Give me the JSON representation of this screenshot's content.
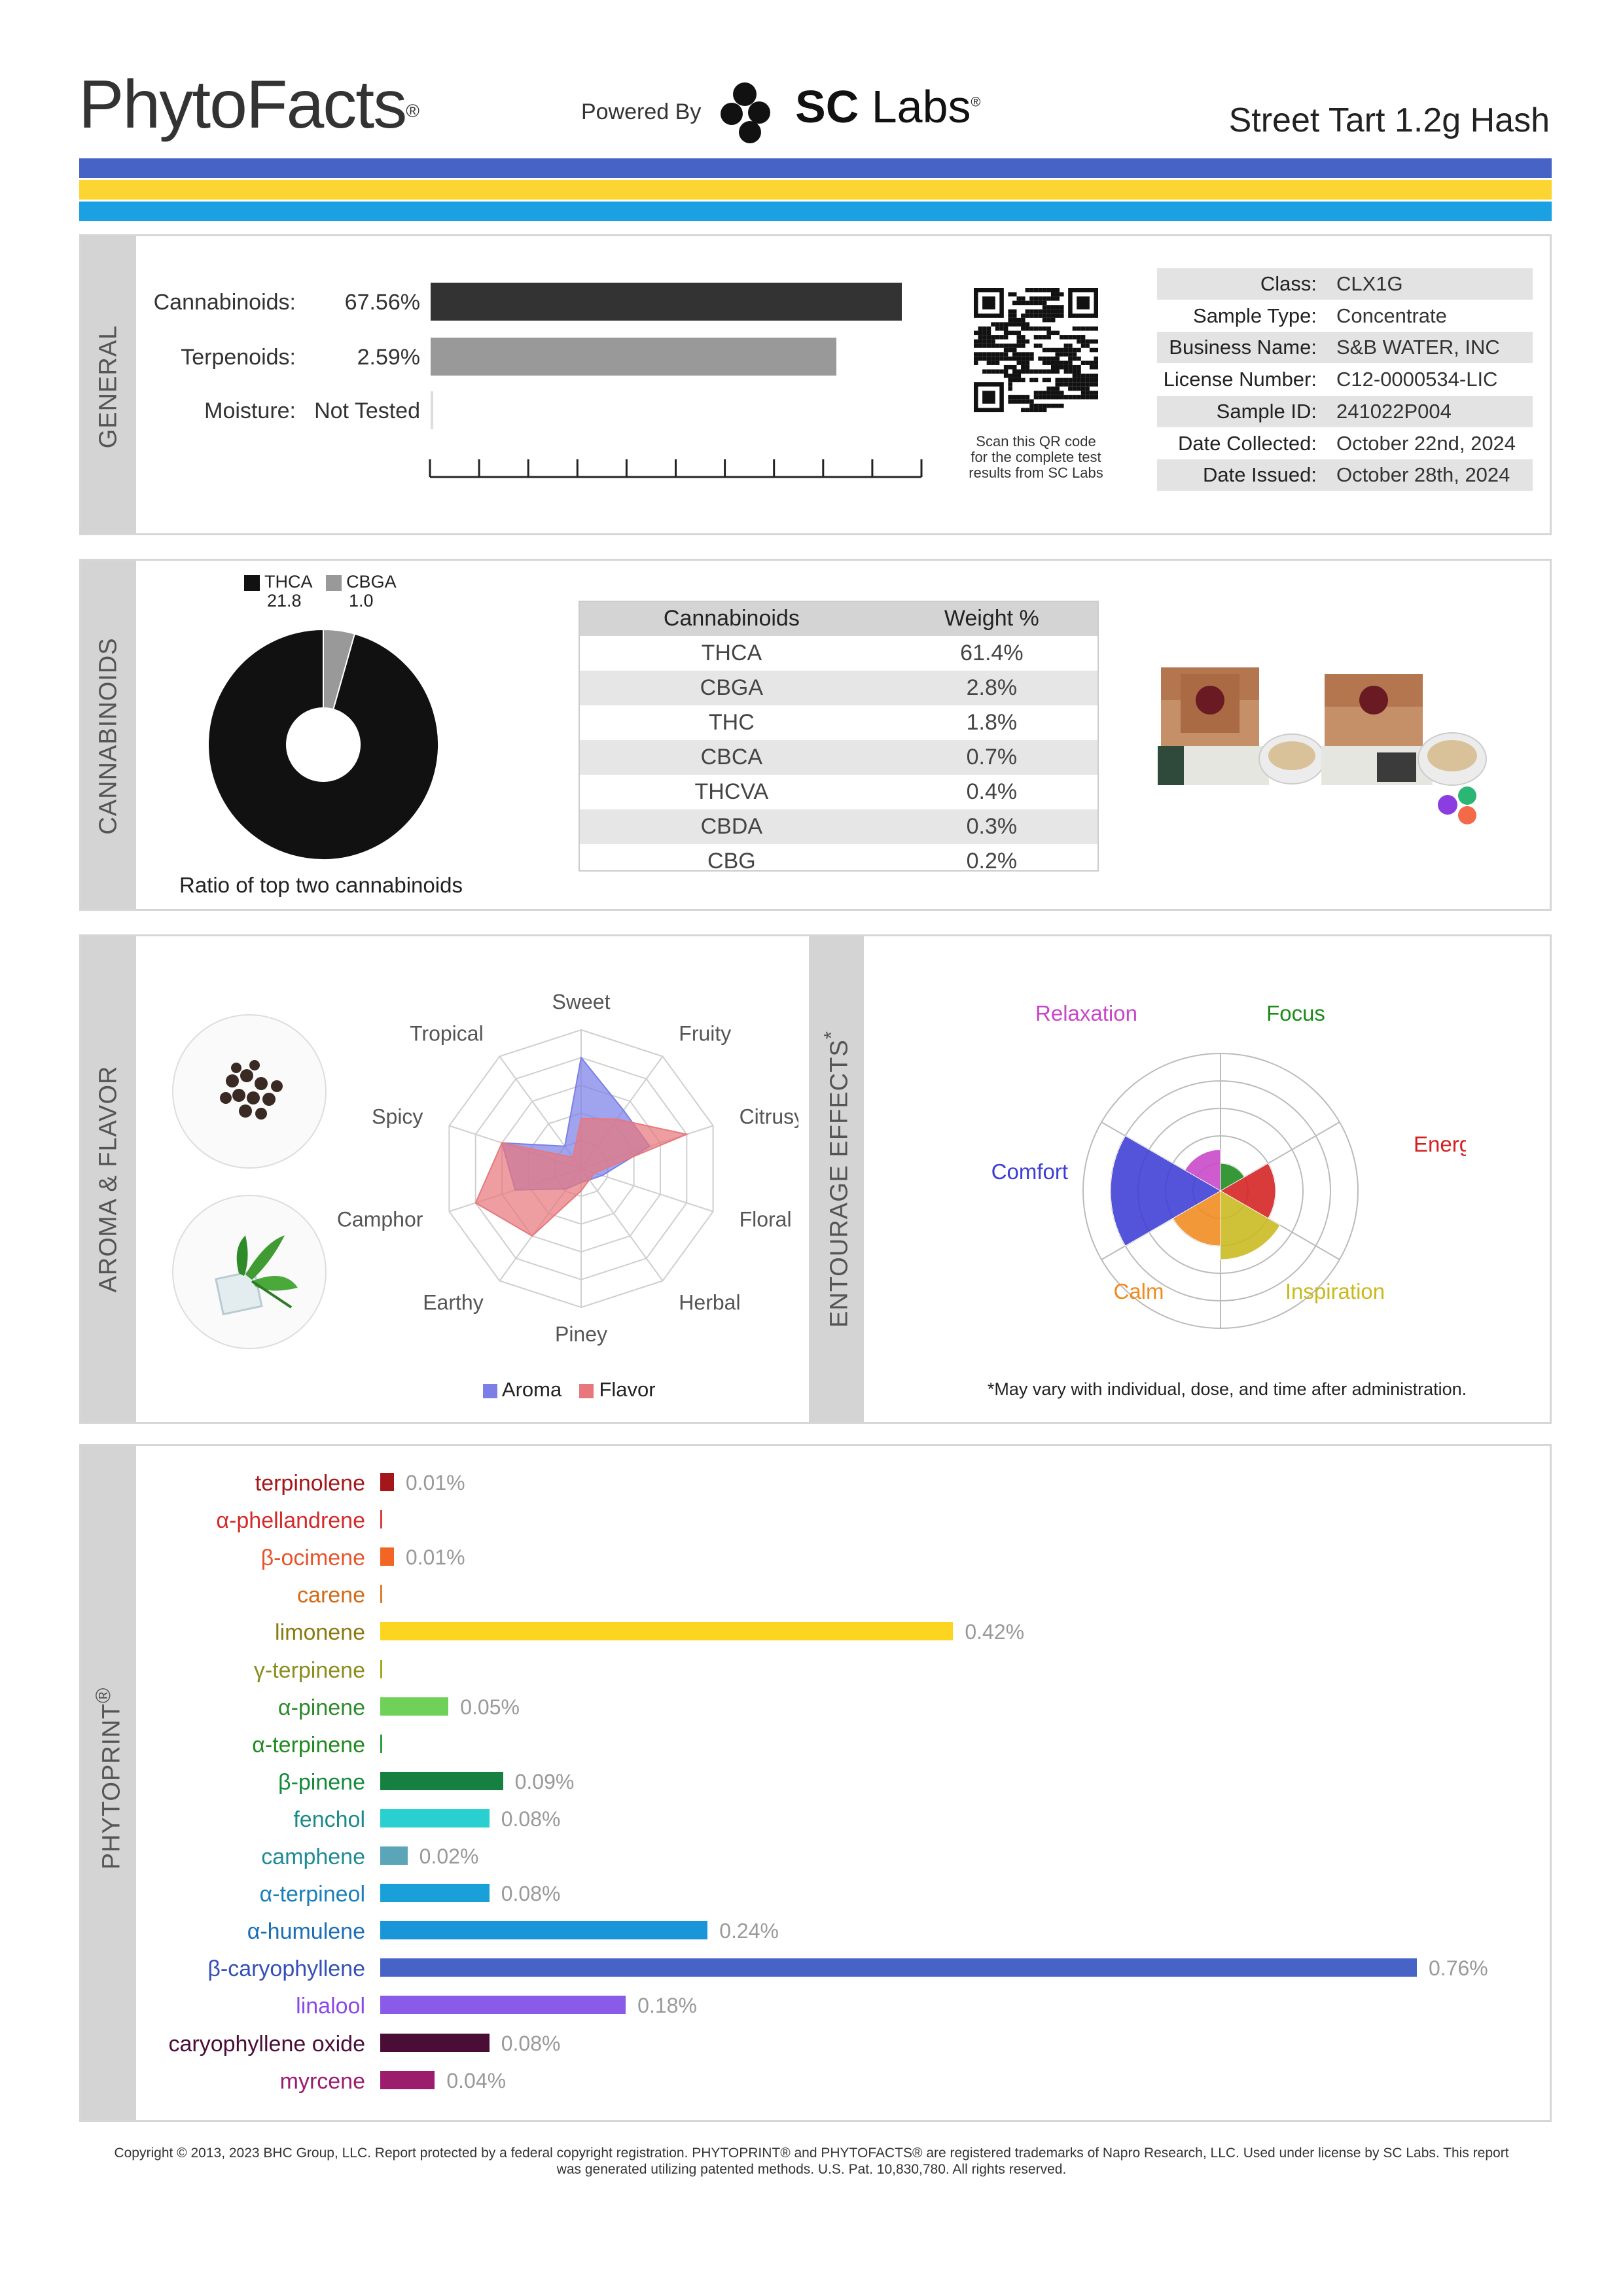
{
  "header": {
    "brand": "PhytoFacts",
    "brand_mark": "®",
    "powered_by": "Powered By",
    "lab_name_bold": "SC",
    "lab_name": "Labs",
    "lab_mark": "®",
    "product_name": "Street Tart 1.2g Hash",
    "stripe_colors": [
      "#4763c5",
      "#fcd533",
      "#1ba1e2"
    ]
  },
  "general": {
    "section_label": "GENERAL",
    "rows": [
      {
        "label": "Cannabinoids:",
        "value": "67.56%",
        "fraction": 0.6756,
        "color": "#333333"
      },
      {
        "label": "Terpenoids:",
        "value": "2.59%",
        "fraction": 0.0259,
        "color": "#999999"
      },
      {
        "label": "Moisture:",
        "value": "Not Tested",
        "fraction": 0,
        "color": "#dddddd"
      }
    ],
    "qr_caption": [
      "Scan this QR code",
      "for the complete test",
      "results from SC Labs"
    ],
    "info": [
      {
        "key": "Class:",
        "value": "CLX1G"
      },
      {
        "key": "Sample Type:",
        "value": "Concentrate"
      },
      {
        "key": "Business Name:",
        "value": "S&B WATER, INC"
      },
      {
        "key": "License Number:",
        "value": "C12-0000534-LIC"
      },
      {
        "key": "Sample ID:",
        "value": "241022P004"
      },
      {
        "key": "Date Collected:",
        "value": "October 22nd, 2024"
      },
      {
        "key": "Date Issued:",
        "value": "October 28th, 2024"
      }
    ]
  },
  "cannabinoids": {
    "section_label": "CANNABINOIDS",
    "donut_caption": "Ratio of top two cannabinoids",
    "donut_legend": [
      {
        "name": "THCA",
        "value": "21.8",
        "color": "#111111"
      },
      {
        "name": "CBGA",
        "value": "1.0",
        "color": "#999999"
      }
    ],
    "table_headers": [
      "Cannabinoids",
      "Weight %"
    ],
    "table_rows": [
      [
        "THCA",
        "61.4%"
      ],
      [
        "CBGA",
        "2.8%"
      ],
      [
        "THC",
        "1.8%"
      ],
      [
        "CBCA",
        "0.7%"
      ],
      [
        "THCVA",
        "0.4%"
      ],
      [
        "CBDA",
        "0.3%"
      ],
      [
        "CBG",
        "0.2%"
      ]
    ]
  },
  "aroma": {
    "section_label": "AROMA & FLAVOR",
    "axes": [
      "Sweet",
      "Fruity",
      "Citrusy",
      "Floral",
      "Herbal",
      "Piney",
      "Earthy",
      "Camphor",
      "Spicy",
      "Tropical"
    ],
    "legend": [
      {
        "name": "Aroma",
        "color": "#7b7fe6"
      },
      {
        "name": "Flavor",
        "color": "#e8777d"
      }
    ]
  },
  "entourage": {
    "section_label": "ENTOURAGE EFFECTS",
    "section_mark": "*",
    "note": "*May vary with individual, dose, and time after administration.",
    "effects": [
      {
        "name": "Relaxation",
        "color": "#c846c8"
      },
      {
        "name": "Focus",
        "color": "#1a8a1a"
      },
      {
        "name": "Energy",
        "color": "#d42020"
      },
      {
        "name": "Inspiration",
        "color": "#c9b91c"
      },
      {
        "name": "Calm",
        "color": "#f08a1c"
      },
      {
        "name": "Comfort",
        "color": "#3c3cd6"
      }
    ]
  },
  "chart_data": [
    {
      "type": "pie",
      "categories": [
        "THCA",
        "CBGA"
      ],
      "values": [
        21.8,
        1.0
      ],
      "colors": [
        "#111111",
        "#999999"
      ],
      "subtitle": "Ratio of top two cannabinoids"
    },
    {
      "type": "radar",
      "categories": [
        "Sweet",
        "Fruity",
        "Citrusy",
        "Floral",
        "Herbal",
        "Piney",
        "Earthy",
        "Camphor",
        "Spicy",
        "Tropical"
      ],
      "rmax": 5,
      "series": [
        {
          "name": "Aroma",
          "values": [
            4.0,
            2.6,
            2.6,
            0.8,
            0.5,
            0.5,
            0.9,
            2.5,
            3.0,
            1.0
          ]
        },
        {
          "name": "Flavor",
          "values": [
            1.8,
            2.2,
            4.0,
            0.5,
            0.5,
            0.8,
            3.0,
            4.0,
            3.0,
            0.5
          ]
        }
      ]
    },
    {
      "type": "polar-area",
      "categories": [
        "Relaxation",
        "Focus",
        "Energy",
        "Inspiration",
        "Calm",
        "Comfort"
      ],
      "values": [
        1.5,
        1.0,
        2.0,
        2.5,
        2.0,
        4.0
      ],
      "rmax": 5
    },
    {
      "type": "bar",
      "categories": [
        "terpinolene",
        "α-phellandrene",
        "β-ocimene",
        "carene",
        "limonene",
        "γ-terpinene",
        "α-pinene",
        "α-terpinene",
        "β-pinene",
        "fenchol",
        "camphene",
        "α-terpineol",
        "α-humulene",
        "β-caryophyllene",
        "linalool",
        "caryophyllene oxide",
        "myrcene"
      ],
      "values": [
        0.01,
        0.0,
        0.01,
        0.0,
        0.42,
        0.0,
        0.05,
        0.0,
        0.09,
        0.08,
        0.02,
        0.08,
        0.24,
        0.76,
        0.18,
        0.08,
        0.04
      ],
      "labels": [
        "0.01%",
        "",
        "0.01%",
        "",
        "0.42%",
        "",
        "0.05%",
        "",
        "0.09%",
        "0.08%",
        "0.02%",
        "0.08%",
        "0.24%",
        "0.76%",
        "0.18%",
        "0.08%",
        "0.04%"
      ],
      "colors": [
        "#a4161a",
        "#d93d3d",
        "#f26522",
        "#e07b2f",
        "#fcd520",
        "#a4a81c",
        "#6fd158",
        "#2e9d3a",
        "#158040",
        "#2ad0d0",
        "#5aa6b8",
        "#1aa0d8",
        "#1a96d8",
        "#4763c5",
        "#8a5ae8",
        "#4a0e36",
        "#9c1c6e"
      ],
      "label_colors": [
        "#a4161a",
        "#d32a2a",
        "#e8542a",
        "#d26a18",
        "#8a7a10",
        "#8a8c1c",
        "#2d8a2d",
        "#1f8a1f",
        "#148a3a",
        "#1a8a8a",
        "#1e8a94",
        "#1a7fb8",
        "#1a6fb8",
        "#3450b8",
        "#8a4ae8",
        "#4a0e36",
        "#9c1c6e"
      ],
      "xlim": [
        0,
        0.76
      ],
      "section_label": "PHYTOPRINT",
      "section_mark": "®"
    }
  ],
  "footer": {
    "line1": "Copyright © 2013, 2023 BHC Group, LLC. Report protected by a federal copyright registration. PHYTOPRINT® and PHYTOFACTS® are registered trademarks of Napro Research, LLC. Used under license by SC Labs. This report",
    "line2": "was generated utilizing patented methods. U.S. Pat. 10,830,780. All rights reserved."
  }
}
